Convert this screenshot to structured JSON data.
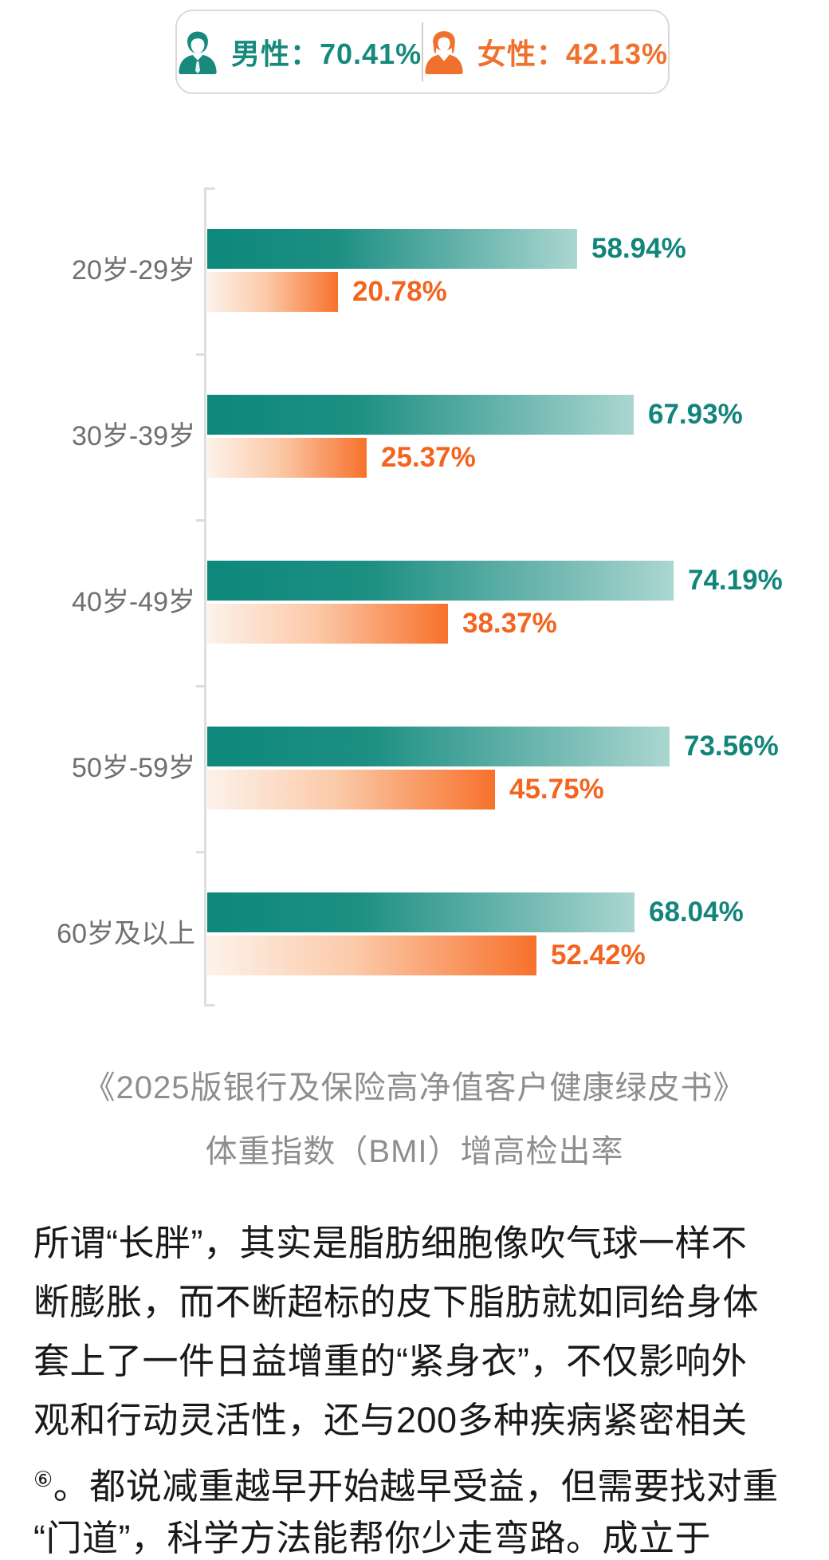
{
  "legend": {
    "male": {
      "label": "男性：",
      "value": "70.41%"
    },
    "female": {
      "label": "女性：",
      "value": "42.13%"
    }
  },
  "chart_data": {
    "type": "bar",
    "orientation": "horizontal",
    "title": "体重指数（BMI）增高检出率",
    "categories": [
      "20岁-29岁",
      "30岁-39岁",
      "40岁-49岁",
      "50岁-59岁",
      "60岁及以上"
    ],
    "series": [
      {
        "name": "男性",
        "color": "#0e887c",
        "values": [
          58.94,
          67.93,
          74.19,
          73.56,
          68.04
        ]
      },
      {
        "name": "女性",
        "color": "#f7712b",
        "values": [
          20.78,
          25.37,
          38.37,
          45.75,
          52.42
        ]
      }
    ],
    "value_suffix": "%",
    "xlim": [
      0,
      80
    ],
    "grid": false,
    "legend_position": "top",
    "overall": {
      "male": 70.41,
      "female": 42.13
    }
  },
  "caption": {
    "line1": "《2025版银行及保险高净值客户健康绿皮书》",
    "line2": "体重指数（BMI）增高检出率"
  },
  "paragraph": {
    "l1": "所谓“长胖”，其实是脂肪细胞像吹气球一样不",
    "l2": "断膨胀，而不断超标的皮下脂肪就如同给身体",
    "l3": "套上了一件日益增重的“紧身衣”，不仅影响外",
    "l4": "观和行动灵活性，还与200多种疾病紧密相关",
    "l5_marker": "⑥",
    "l5_text": "。都说减重越早开始越早受益，但需要找对重",
    "l6": "“门道”，科学方法能帮你少走弯路。成立于"
  },
  "colors": {
    "teal": "#0e887c",
    "teal_light": "#abd6d1",
    "teal_text": "#12857b",
    "orange": "#f7712b",
    "orange_light": "#fdf2ea",
    "orange_text": "#f3641f",
    "axis_gray": "#dedede",
    "category_gray": "#6f6f6f",
    "caption_gray": "#8e8e8e",
    "body_black": "#191919"
  }
}
